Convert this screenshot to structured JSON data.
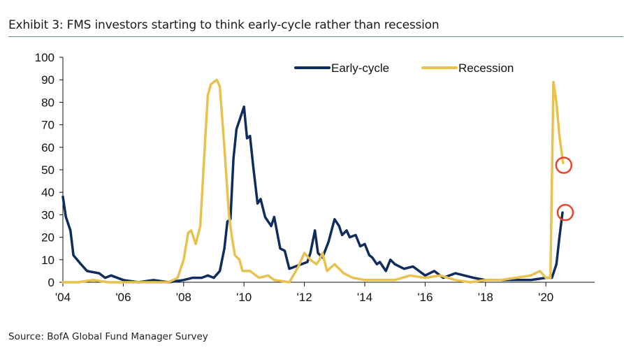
{
  "title": "Exhibit 3: FMS investors starting to think early-cycle rather than recession",
  "source": "Source: BofA Global Fund Manager Survey",
  "chart_data": {
    "type": "line",
    "title": "Exhibit 3: FMS investors starting to think early-cycle rather than recession",
    "xlabel": "",
    "ylabel": "",
    "xlim": [
      2004,
      2021.6
    ],
    "ylim": [
      0,
      100
    ],
    "yticks": [
      0,
      10,
      20,
      30,
      40,
      50,
      60,
      70,
      80,
      90,
      100
    ],
    "xticks": [
      2004,
      2006,
      2008,
      2010,
      2012,
      2014,
      2016,
      2018,
      2020
    ],
    "xtick_labels": [
      "'04",
      "'06",
      "'08",
      "'10",
      "'12",
      "'14",
      "'16",
      "'18",
      "'20"
    ],
    "legend_position": "top-center",
    "series": [
      {
        "name": "Early-cycle",
        "color": "#0f2c5c",
        "x": [
          2004.0,
          2004.1,
          2004.25,
          2004.35,
          2004.6,
          2004.8,
          2005.2,
          2005.4,
          2005.6,
          2006,
          2006.5,
          2007,
          2007.5,
          2008,
          2008.3,
          2008.6,
          2008.8,
          2009.0,
          2009.2,
          2009.35,
          2009.45,
          2009.55,
          2009.65,
          2009.75,
          2009.85,
          2010.0,
          2010.1,
          2010.2,
          2010.3,
          2010.45,
          2010.55,
          2010.7,
          2010.9,
          2011.0,
          2011.2,
          2011.35,
          2011.5,
          2011.7,
          2011.9,
          2012.1,
          2012.2,
          2012.35,
          2012.45,
          2012.6,
          2012.8,
          2013.0,
          2013.15,
          2013.25,
          2013.4,
          2013.5,
          2013.7,
          2013.85,
          2014.0,
          2014.15,
          2014.25,
          2014.4,
          2014.5,
          2014.7,
          2014.85,
          2015.0,
          2015.3,
          2015.6,
          2016,
          2016.3,
          2016.6,
          2017,
          2017.3,
          2017.6,
          2018,
          2018.5,
          2019,
          2019.5,
          2020,
          2020.2,
          2020.35,
          2020.45,
          2020.55
        ],
        "values": [
          38,
          29,
          23,
          12,
          8,
          5,
          4,
          2,
          3,
          1,
          0,
          1,
          0,
          1,
          2,
          2,
          3,
          2,
          5,
          15,
          27,
          28,
          55,
          68,
          72,
          78,
          64,
          65,
          52,
          35,
          37,
          29,
          25,
          29,
          15,
          14,
          6,
          7,
          8,
          9,
          13,
          23,
          13,
          11,
          18,
          28,
          25,
          21,
          23,
          20,
          21,
          16,
          17,
          12,
          11,
          8,
          9,
          5,
          10,
          8,
          6,
          7,
          3,
          5,
          2,
          4,
          3,
          2,
          1,
          1,
          1,
          1,
          2,
          2,
          8,
          20,
          31
        ]
      },
      {
        "name": "Recession",
        "color": "#e8c14f",
        "x": [
          2004,
          2004.5,
          2005,
          2005.5,
          2006,
          2007,
          2007.5,
          2007.8,
          2008.0,
          2008.15,
          2008.25,
          2008.4,
          2008.55,
          2008.7,
          2008.8,
          2008.9,
          2009.0,
          2009.1,
          2009.2,
          2009.35,
          2009.5,
          2009.6,
          2009.7,
          2009.85,
          2009.95,
          2010.2,
          2010.5,
          2010.8,
          2011.0,
          2011.5,
          2011.8,
          2012.0,
          2012.2,
          2012.4,
          2012.5,
          2012.6,
          2012.75,
          2013.0,
          2013.3,
          2013.6,
          2014,
          2015,
          2015.5,
          2016,
          2016.5,
          2017,
          2017.5,
          2018,
          2018.5,
          2019,
          2019.5,
          2019.8,
          2020.0,
          2020.15,
          2020.25,
          2020.35,
          2020.45,
          2020.55,
          2020.57
        ],
        "values": [
          0,
          0,
          1,
          0,
          0,
          0,
          0,
          2,
          10,
          22,
          23,
          17,
          25,
          60,
          83,
          88,
          89,
          90,
          87,
          60,
          30,
          20,
          12,
          10,
          5,
          5,
          2,
          3,
          1,
          0,
          7,
          13,
          10,
          8,
          10,
          13,
          5,
          8,
          4,
          2,
          1,
          1,
          3,
          2,
          3,
          1,
          0,
          1,
          1,
          2,
          3,
          5,
          2,
          2,
          89,
          80,
          65,
          55,
          53
        ]
      }
    ],
    "annotations": [
      {
        "type": "circle",
        "series": "Recession",
        "x": 2020.57,
        "y": 52,
        "color": "#e5452b"
      },
      {
        "type": "circle",
        "series": "Early-cycle",
        "x": 2020.62,
        "y": 31,
        "color": "#e5452b"
      }
    ]
  }
}
